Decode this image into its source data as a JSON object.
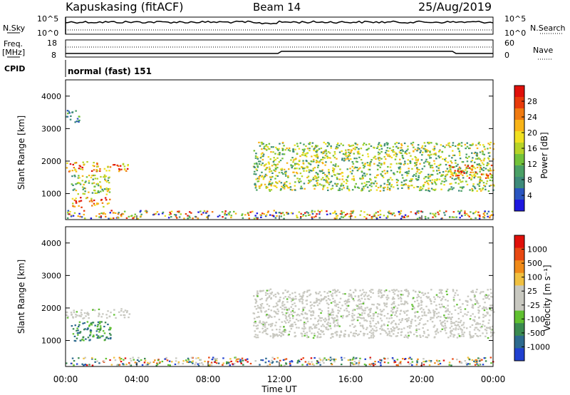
{
  "header": {
    "station": "Kapuskasing (fitACF)",
    "beam": "Beam 14",
    "date": "25/Aug/2019"
  },
  "left_labels": {
    "nsky": "N.Sky",
    "freq_line1": "Freq.",
    "freq_line2": "[MHz]",
    "cpid": "CPID"
  },
  "right_labels": {
    "nsearch": "N.Search",
    "nave": "Nave"
  },
  "cpid_value": "normal (fast) 151",
  "noise_axis": {
    "left_ticks": [
      "10^5",
      "10^0"
    ],
    "right_ticks": [
      "10^5",
      "10^0"
    ]
  },
  "freq_axis": {
    "left_ticks": [
      "18",
      "8"
    ],
    "right_ticks": [
      "60",
      "0"
    ]
  },
  "time_axis": {
    "label": "Time UT",
    "ticks": [
      "00:00",
      "04:00",
      "08:00",
      "12:00",
      "16:00",
      "20:00",
      "00:00"
    ],
    "range_hours": [
      0,
      24
    ]
  },
  "chart_data": [
    {
      "type": "heatmap",
      "title": "Power",
      "xlabel": "Time UT",
      "ylabel": "Slant Range [km]",
      "y_ticks": [
        "1000",
        "2000",
        "3000",
        "4000"
      ],
      "ylim": [
        200,
        4500
      ],
      "colorbar": {
        "label": "Power [dB]",
        "ticks": [
          "28",
          "24",
          "20",
          "16",
          "12",
          "8",
          "4"
        ],
        "colors": [
          "#1e18e0",
          "#2a55c0",
          "#3d8a7a",
          "#4aa066",
          "#72c23a",
          "#b6d327",
          "#f0e020",
          "#f8b418",
          "#f07a10",
          "#e83a0a",
          "#e0100a"
        ]
      },
      "regions": [
        {
          "t": [
            0.0,
            3.6
          ],
          "r": [
            1700,
            2000
          ],
          "level": "high"
        },
        {
          "t": [
            0.3,
            2.5
          ],
          "r": [
            1000,
            1600
          ],
          "level": "medium"
        },
        {
          "t": [
            0.3,
            2.5
          ],
          "r": [
            600,
            900
          ],
          "level": "high"
        },
        {
          "t": [
            0.0,
            0.8
          ],
          "r": [
            3200,
            3600
          ],
          "level": "low"
        },
        {
          "t": [
            0.0,
            24.0
          ],
          "r": [
            250,
            500
          ],
          "level": "mixed"
        },
        {
          "t": [
            10.5,
            24.0
          ],
          "r": [
            1100,
            2600
          ],
          "level": "medium"
        },
        {
          "t": [
            21.5,
            24.0
          ],
          "r": [
            1500,
            1900
          ],
          "level": "high"
        }
      ]
    },
    {
      "type": "heatmap",
      "title": "Velocity",
      "xlabel": "Time UT",
      "ylabel": "Slant Range [km]",
      "y_ticks": [
        "1000",
        "2000",
        "3000",
        "4000"
      ],
      "ylim": [
        200,
        4500
      ],
      "colorbar": {
        "label": "Velocity [m s⁻¹]",
        "ticks": [
          "1000",
          "500",
          "100",
          "25",
          "-25",
          "-100",
          "-500",
          "-1000"
        ],
        "colors": [
          "#2040d0",
          "#2d6a8e",
          "#3a8a50",
          "#60c030",
          "#c8c8c0",
          "#c8c8c0",
          "#f0c040",
          "#f08a18",
          "#e84812",
          "#e0100a"
        ]
      },
      "regions": [
        {
          "t": [
            0.0,
            3.6
          ],
          "r": [
            1700,
            2000
          ],
          "level": "near-zero"
        },
        {
          "t": [
            0.3,
            2.5
          ],
          "r": [
            1000,
            1600
          ],
          "level": "positive"
        },
        {
          "t": [
            0.0,
            24.0
          ],
          "r": [
            250,
            500
          ],
          "level": "mixed"
        },
        {
          "t": [
            10.5,
            24.0
          ],
          "r": [
            1100,
            2600
          ],
          "level": "near-zero"
        }
      ]
    }
  ]
}
